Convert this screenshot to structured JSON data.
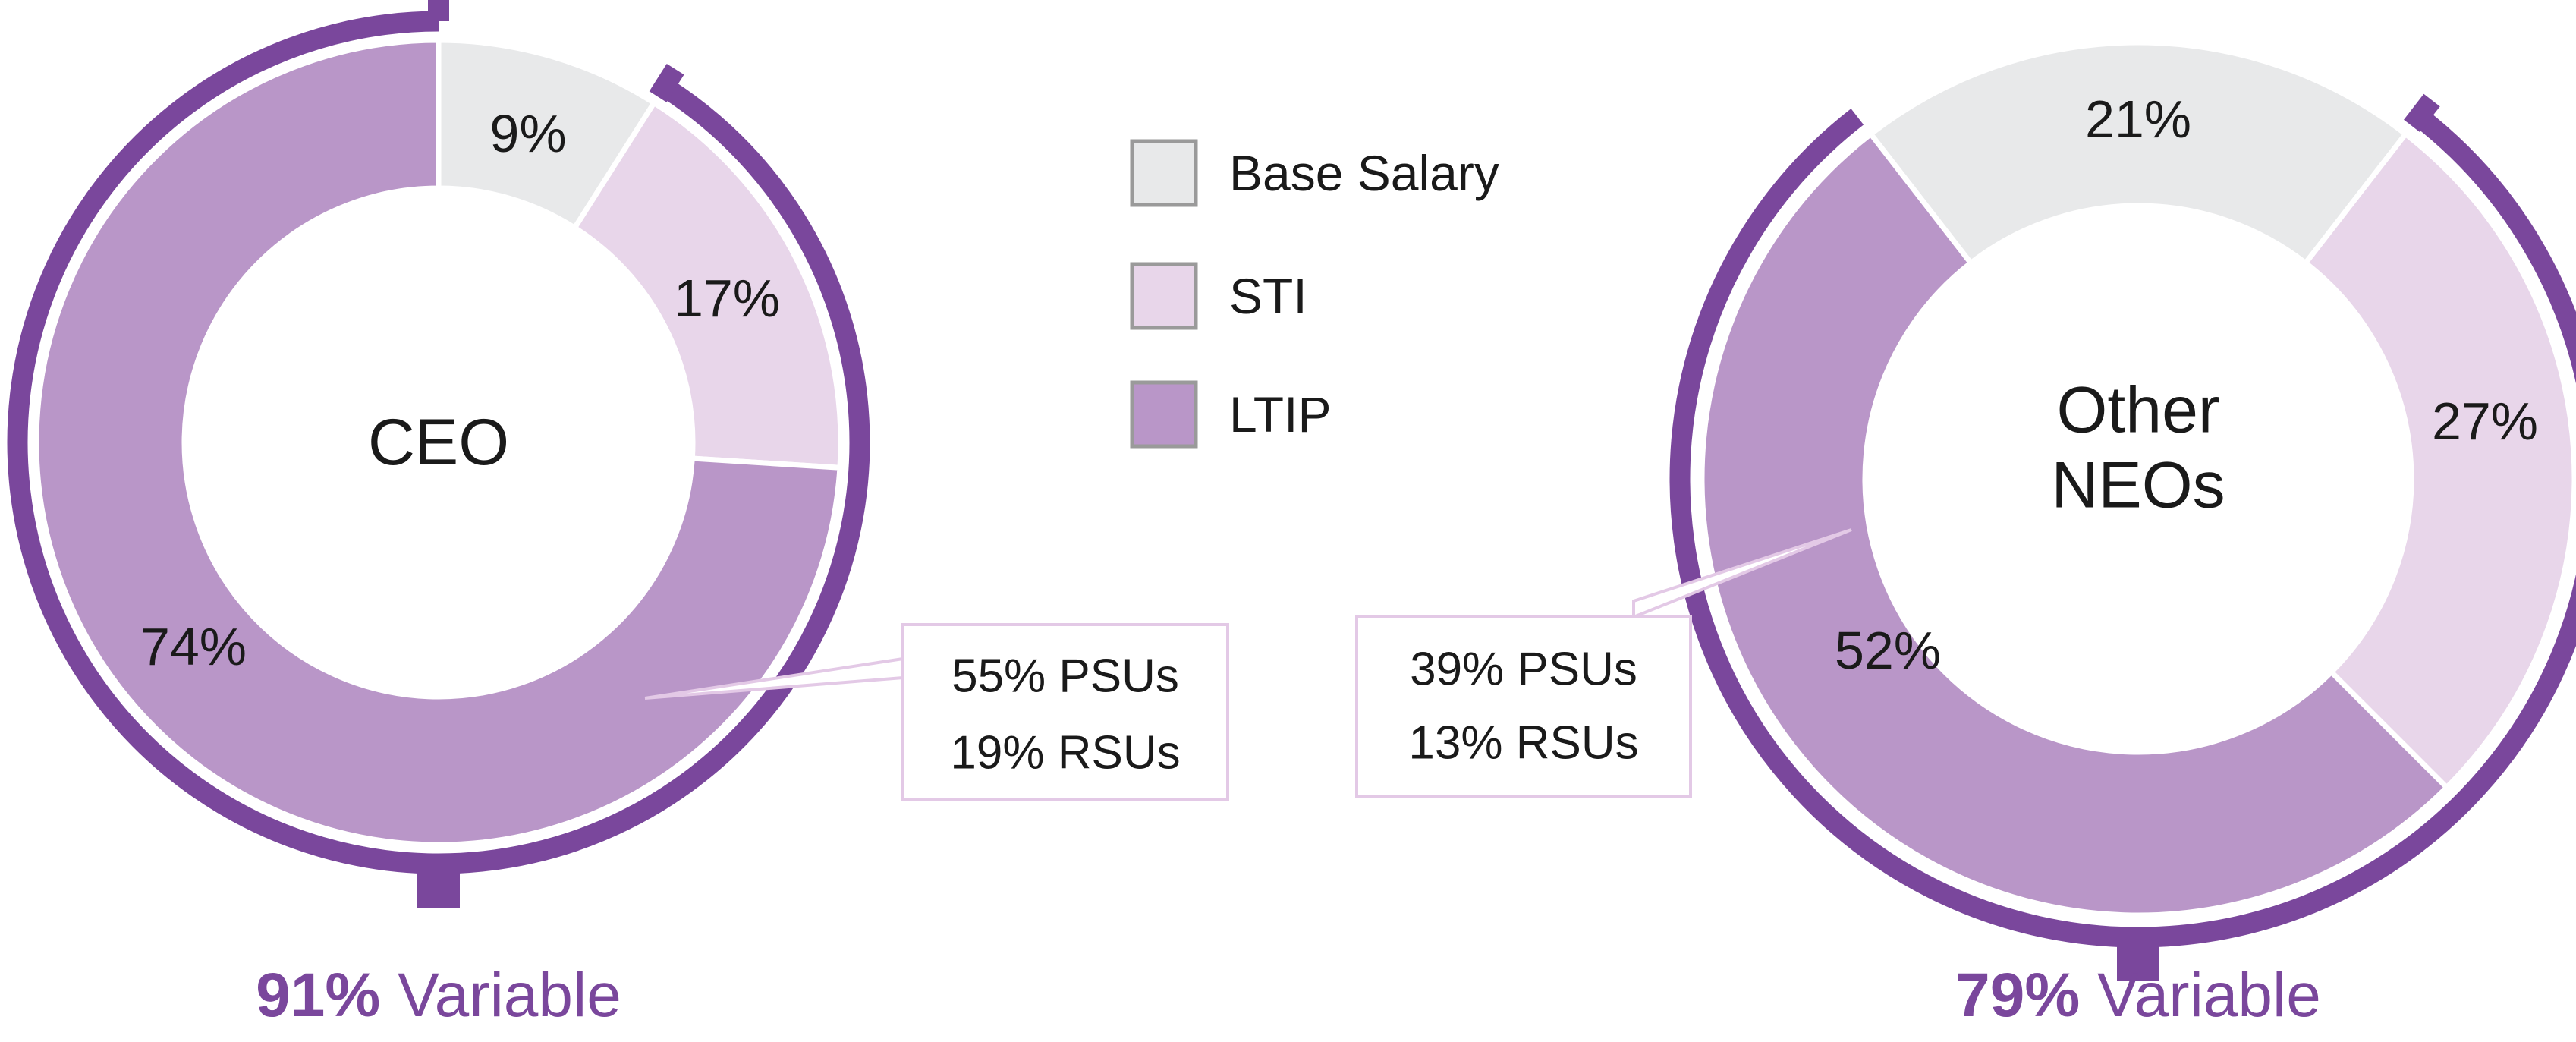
{
  "legend": [
    {
      "label": "Base Salary",
      "color": "#e8e9ea"
    },
    {
      "label": "STI",
      "color": "#e8d6ea"
    },
    {
      "label": "LTIP",
      "color": "#b996c8"
    }
  ],
  "colors": {
    "variable_arc": "#7a479c",
    "callout_border": "#e3c9e6",
    "legend_border": "#9a9a9a",
    "text": "#1a1a1a"
  },
  "chart_data": [
    {
      "type": "pie",
      "center_label": "CEO",
      "categories": [
        "Base Salary",
        "STI",
        "LTIP"
      ],
      "values": [
        9,
        17,
        74
      ],
      "value_labels": [
        "9%",
        "17%",
        "74%"
      ],
      "ltip_breakdown": [
        "55% PSUs",
        "19% RSUs"
      ],
      "variable_value": "91%",
      "variable_word": "Variable"
    },
    {
      "type": "pie",
      "center_label": "Other NEOs",
      "categories": [
        "Base Salary",
        "STI",
        "LTIP"
      ],
      "values": [
        21,
        27,
        52
      ],
      "value_labels": [
        "21%",
        "27%",
        "52%"
      ],
      "ltip_breakdown": [
        "39% PSUs",
        "13% RSUs"
      ],
      "variable_value": "79%",
      "variable_word": "Variable"
    }
  ]
}
